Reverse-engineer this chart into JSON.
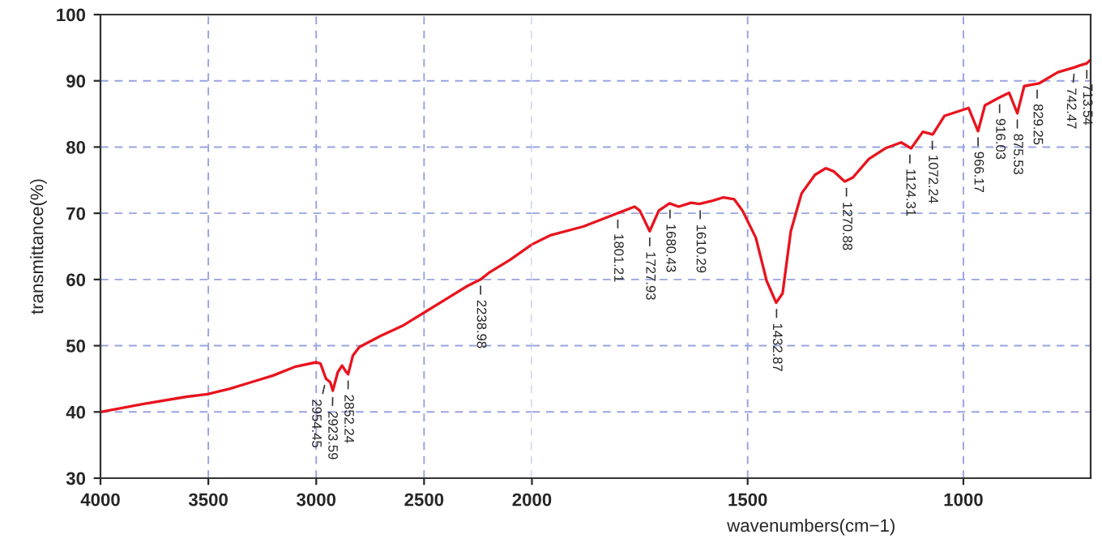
{
  "chart_data": [
    {
      "type": "line",
      "ylabel": "transmittance(%)",
      "xlim": [
        4000,
        2000
      ],
      "xticks": [
        4000,
        3500,
        3000,
        2500,
        2000
      ],
      "ylim": [
        30,
        100
      ],
      "yticks": [
        30,
        40,
        50,
        60,
        70,
        80,
        90,
        100
      ],
      "grid": true,
      "series": [
        {
          "color": "#e8141e",
          "x": [
            4000,
            3800,
            3600,
            3500,
            3400,
            3300,
            3200,
            3100,
            3000,
            2980,
            2960,
            2954,
            2935,
            2923,
            2900,
            2880,
            2860,
            2852,
            2830,
            2800,
            2700,
            2600,
            2500,
            2400,
            2300,
            2238,
            2200,
            2100,
            2000
          ],
          "values": [
            40,
            41.2,
            42.3,
            42.7,
            43.5,
            44.5,
            45.5,
            46.8,
            47.5,
            47.3,
            45.5,
            45,
            44.5,
            43.2,
            46,
            47,
            46,
            45.7,
            48.5,
            49.8,
            51.5,
            53,
            55,
            57,
            59,
            60,
            61,
            63,
            65.3
          ]
        }
      ],
      "annotations": [
        {
          "text": "2954.45",
          "x": 2954,
          "y": 45
        },
        {
          "text": "2923.59",
          "x": 2923,
          "y": 43.2
        },
        {
          "text": "2852.24",
          "x": 2852,
          "y": 45.7
        },
        {
          "text": "2238.98",
          "x": 2238,
          "y": 60
        }
      ]
    },
    {
      "type": "line",
      "xlabel": "wavenumbers(cm−1)",
      "xlim": [
        2000,
        705
      ],
      "xticks": [
        1500,
        1000
      ],
      "ylim": [
        30,
        100
      ],
      "yticks": [
        30,
        40,
        50,
        60,
        70,
        80,
        90,
        100
      ],
      "grid": true,
      "tick_labels": "x",
      "series": [
        {
          "color": "#e8141e",
          "x": [
            2000,
            1956,
            1881,
            1806,
            1762,
            1750,
            1727,
            1706,
            1681,
            1660,
            1631,
            1612,
            1581,
            1556,
            1531,
            1512,
            1481,
            1456,
            1434,
            1419,
            1400,
            1375,
            1344,
            1319,
            1300,
            1275,
            1256,
            1219,
            1181,
            1144,
            1121,
            1094,
            1071,
            1044,
            988,
            966,
            950,
            919,
            894,
            875,
            859,
            825,
            781,
            744,
            731,
            715,
            706
          ],
          "values": [
            65.3,
            66.7,
            68,
            69.9,
            71,
            70.4,
            67.3,
            70.4,
            71.5,
            71,
            71.6,
            71.4,
            71.9,
            72.4,
            72.1,
            70.4,
            66.3,
            59.8,
            56.5,
            57.9,
            67.3,
            73,
            75.8,
            76.8,
            76.3,
            74.8,
            75.4,
            78.2,
            79.8,
            80.7,
            79.8,
            82.3,
            81.9,
            84.7,
            85.9,
            82.4,
            86.3,
            87.4,
            88.2,
            85.1,
            89.2,
            89.6,
            91.3,
            92,
            92.3,
            92.6,
            93.1
          ]
        }
      ],
      "annotations": [
        {
          "text": "1801.21",
          "x": 1801,
          "y": 70
        },
        {
          "text": "1727.93",
          "x": 1727,
          "y": 67.3
        },
        {
          "text": "1680.43",
          "x": 1680,
          "y": 71.5
        },
        {
          "text": "1610.29",
          "x": 1610,
          "y": 71.4
        },
        {
          "text": "1432.87",
          "x": 1433,
          "y": 56.5
        },
        {
          "text": "1270.88",
          "x": 1271,
          "y": 74.8
        },
        {
          "text": "1124.31",
          "x": 1124,
          "y": 79.8
        },
        {
          "text": "1072.24",
          "x": 1072,
          "y": 81.9
        },
        {
          "text": "966.17",
          "x": 966,
          "y": 82.4
        },
        {
          "text": "916.03",
          "x": 916,
          "y": 87.4
        },
        {
          "text": "875.53",
          "x": 875,
          "y": 85.1
        },
        {
          "text": "829.25",
          "x": 829,
          "y": 89.6
        },
        {
          "text": "742.47",
          "x": 742,
          "y": 92
        },
        {
          "text": "713.54",
          "x": 714,
          "y": 92.6
        }
      ]
    }
  ]
}
